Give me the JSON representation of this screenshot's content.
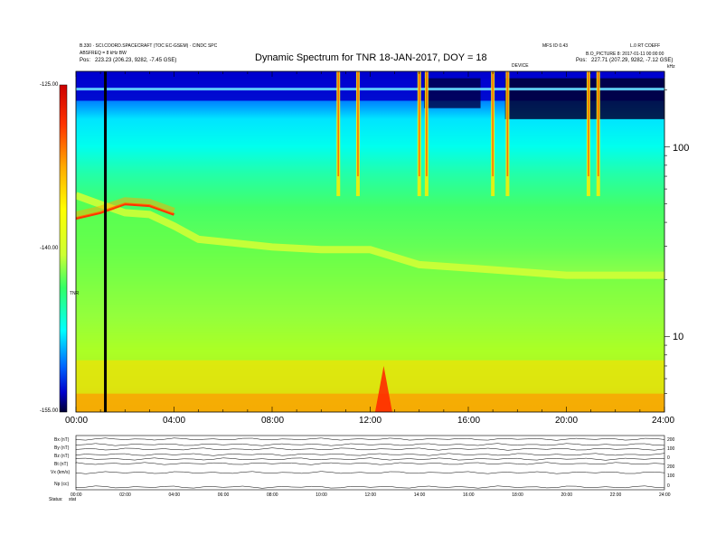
{
  "header": {
    "left_line1": "B.330 · SCI.COORD.SPACECRAFT (TOC EC-GSEM) · CINDC SPC",
    "left_line2": "ABSFREQ = 8 kHz BW",
    "left_pos_label": "Pos:",
    "left_pos_value": "223.23 (206.23, 9282, -7.45 GSE)",
    "title": "Dynamic Spectrum for TNR 18-JAN-2017, DOY = 18",
    "right_line1a": "MFS ID 0.43",
    "right_line1b": "L.0 RT COEFF",
    "right_line2": "B.O_PICTURE 8: 2017-01-11 00:00:00",
    "right_pos_label": "Pos:",
    "right_pos_value": "227.71 (207.29, 9282, -7.12 GSE)",
    "marker_label": "DEVICE",
    "freq_unit": "kHz"
  },
  "colorbar": {
    "ticks": [
      "-125.00",
      "-140.00",
      "-155.00"
    ],
    "label": "TNR"
  },
  "bottom_panel": {
    "row_labels": [
      "Bx (nT)",
      "By (nT)",
      "Bz (nT)",
      "Bt (nT)",
      "Vx (km/s)",
      "Np (cc)"
    ],
    "right_labels": [
      "200",
      "100",
      "0",
      "200",
      "100",
      "0"
    ],
    "footer_left_a": "Status:",
    "footer_left_b": "stat",
    "time_ticks": [
      "00:00",
      "02:00",
      "04:00",
      "06:00",
      "08:00",
      "10:00",
      "12:00",
      "14:00",
      "16:00",
      "18:00",
      "20:00",
      "22:00",
      "24:00"
    ]
  },
  "chart_data": {
    "type": "heatmap",
    "title": "Dynamic Spectrum for TNR 18-JAN-2017, DOY = 18",
    "xlabel": "",
    "ylabel": "",
    "x_ticks": [
      "00:00",
      "04:00",
      "08:00",
      "12:00",
      "16:00",
      "20:00",
      "24:00"
    ],
    "x_range_hours": [
      0,
      24
    ],
    "y_scale": "log",
    "y_ticks": [
      "100",
      "10"
    ],
    "y_range_khz": [
      4,
      250
    ],
    "colorbar_range": [
      -155,
      -125
    ],
    "colorbar_ticks": [
      -125,
      -140,
      -155
    ],
    "colormap_colors": [
      "#000033",
      "#0000cc",
      "#0066ff",
      "#00ffff",
      "#33ff66",
      "#ccff33",
      "#ffff00",
      "#ffaa00",
      "#ff3300",
      "#cc0000"
    ],
    "marker_time_hours": 1.2,
    "features": {
      "upper_band_edge_khz": [
        [
          0,
          58
        ],
        [
          1,
          52
        ],
        [
          2,
          47
        ],
        [
          3,
          46
        ],
        [
          4,
          40
        ],
        [
          5,
          34
        ],
        [
          6,
          33
        ],
        [
          8,
          31
        ],
        [
          10,
          30
        ],
        [
          12,
          30
        ],
        [
          14,
          25
        ],
        [
          16,
          24
        ],
        [
          18,
          23
        ],
        [
          20,
          22
        ],
        [
          22,
          22
        ],
        [
          24,
          22
        ]
      ],
      "red_line_khz": [
        [
          0,
          42
        ],
        [
          1,
          45
        ],
        [
          2,
          50
        ],
        [
          3,
          49
        ],
        [
          4,
          44
        ]
      ],
      "type_iii_bursts_hours": [
        10.7,
        11.5,
        14.0,
        14.3,
        17.0,
        17.6,
        20.9,
        21.3
      ],
      "bright_low_freq_event_hours": [
        12.2,
        12.9
      ]
    }
  }
}
